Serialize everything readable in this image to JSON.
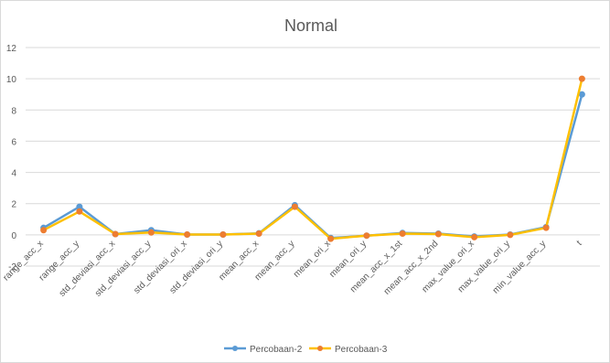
{
  "chart_data": {
    "type": "line",
    "title": "Normal",
    "xlabel": "",
    "ylabel": "",
    "ylim": [
      -2,
      12
    ],
    "yticks": [
      -2,
      0,
      2,
      4,
      6,
      8,
      10,
      12
    ],
    "grid": "horizontal",
    "legend_position": "bottom",
    "categories": [
      "range_acc_x",
      "range_acc_y",
      "std_deviasi_acc_x",
      "std_deviasi_acc_y",
      "std_deviasi_ori_x",
      "std_deviasi_ori_y",
      "mean_acc_x",
      "mean_acc_y",
      "mean_ori_x",
      "mean_ori_y",
      "mean_acc_x_1st",
      "mean_acc_x_2nd",
      "max_value_ori_x",
      "max_value_ori_y",
      "min_value_acc_y",
      "t"
    ],
    "series": [
      {
        "name": "Percobaan-2",
        "color": "#5B9BD5",
        "values": [
          0.45,
          1.8,
          0.05,
          0.3,
          0.02,
          0.02,
          0.1,
          1.9,
          -0.2,
          -0.05,
          0.12,
          0.08,
          -0.1,
          0.02,
          0.5,
          9.0
        ]
      },
      {
        "name": "Percobaan-3",
        "color": "#FFC000",
        "values": [
          0.3,
          1.5,
          0.05,
          0.15,
          0.02,
          0.02,
          0.08,
          1.8,
          -0.25,
          -0.05,
          0.08,
          0.05,
          -0.15,
          0.0,
          0.45,
          10.0
        ]
      }
    ],
    "marker_color": "#ED7D31"
  }
}
